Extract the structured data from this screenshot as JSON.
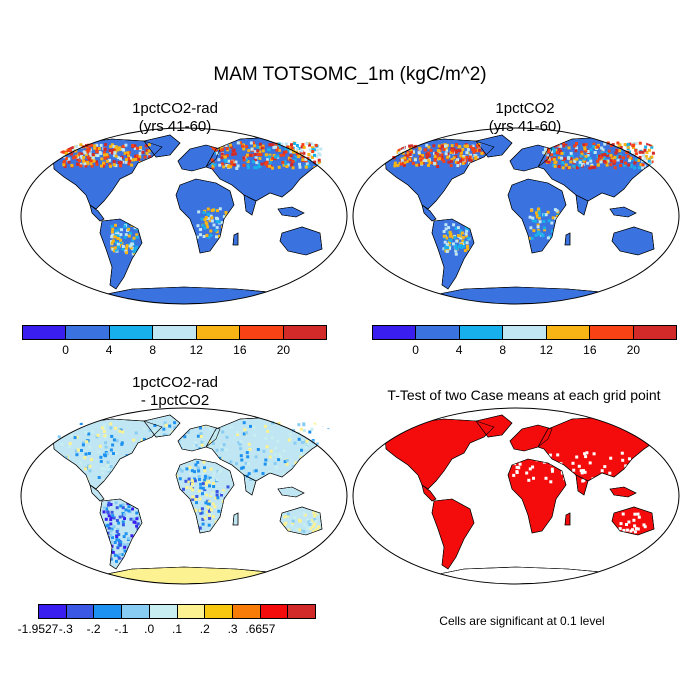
{
  "title": "MAM TOTSOMC_1m (kgC/m^2)",
  "panels": {
    "top_left": {
      "title_line1": "1pctCO2-rad",
      "title_line2": "(yrs 41-60)"
    },
    "top_right": {
      "title_line1": "1pctCO2",
      "title_line2": "(yrs 41-60)"
    },
    "bottom_left": {
      "title_line1": "1pctCO2-rad",
      "title_line2": "- 1pctCO2"
    },
    "bottom_right": {
      "title_line1": "T-Test of two Case means at each grid point",
      "note": "Cells are significant at 0.1 level"
    }
  },
  "colorbar_abs": {
    "colors": [
      "#3a1ef0",
      "#3a72e0",
      "#18b0ec",
      "#bfe6f2",
      "#f8b414",
      "#f64214",
      "#d22a28"
    ],
    "labels": [
      "0",
      "4",
      "8",
      "12",
      "16",
      "20"
    ]
  },
  "colorbar_diff": {
    "colors": [
      "#3a1ef0",
      "#3a58e4",
      "#1e92f0",
      "#88ccf4",
      "#c8eef2",
      "#fcf292",
      "#f8c810",
      "#f87c08",
      "#f40c0c",
      "#d22a28"
    ],
    "labels": [
      "-1.9527",
      "-.3",
      "-.2",
      "-.1",
      ".0",
      ".1",
      ".2",
      ".3",
      ".6657"
    ]
  },
  "colors": {
    "ocean": "#ffffff",
    "land_abs": "#3a72e0",
    "land_diff": "#bfe6f2",
    "antarctica_diff": "#fcf292",
    "ttest": "#f40c0c"
  }
}
